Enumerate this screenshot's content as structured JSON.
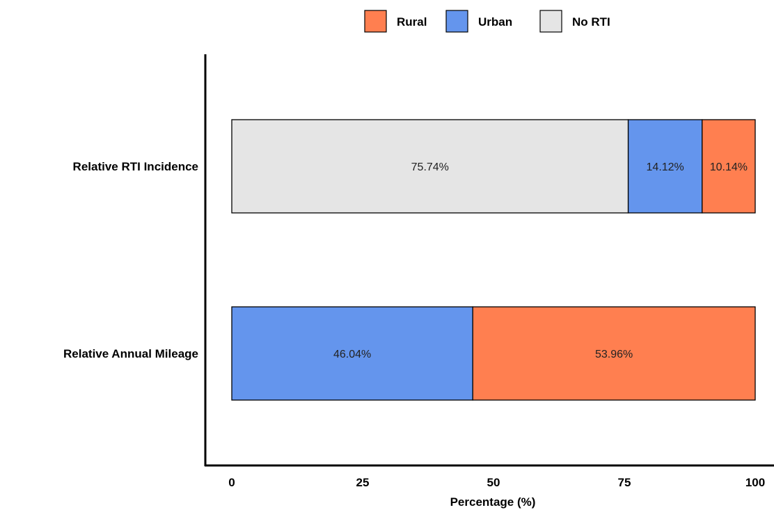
{
  "chart_data": {
    "type": "bar",
    "orientation": "horizontal",
    "stacked": true,
    "categories": [
      "Relative RTI Incidence",
      "Relative Annual Mileage"
    ],
    "series": [
      {
        "name": "No RTI",
        "values": [
          75.74,
          0
        ],
        "labels": [
          "75.74%",
          ""
        ],
        "color": "#E5E5E5"
      },
      {
        "name": "Urban",
        "values": [
          14.12,
          46.04
        ],
        "labels": [
          "14.12%",
          "46.04%"
        ],
        "color": "#6495ED"
      },
      {
        "name": "Rural",
        "values": [
          10.14,
          53.96
        ],
        "labels": [
          "10.14%",
          "53.96%"
        ],
        "color": "#FF7F50"
      }
    ],
    "legend": {
      "position": "top",
      "entries": [
        {
          "name": "Rural",
          "color": "#FF7F50"
        },
        {
          "name": "Urban",
          "color": "#6495ED"
        },
        {
          "name": "No RTI",
          "color": "#E5E5E5"
        }
      ]
    },
    "xlabel": "Percentage (%)",
    "ylabel": "",
    "xlim": [
      0,
      100
    ],
    "xticks": [
      0,
      25,
      50,
      75,
      100
    ],
    "xtick_labels": [
      "0",
      "25",
      "50",
      "75",
      "100"
    ],
    "grid": false
  }
}
